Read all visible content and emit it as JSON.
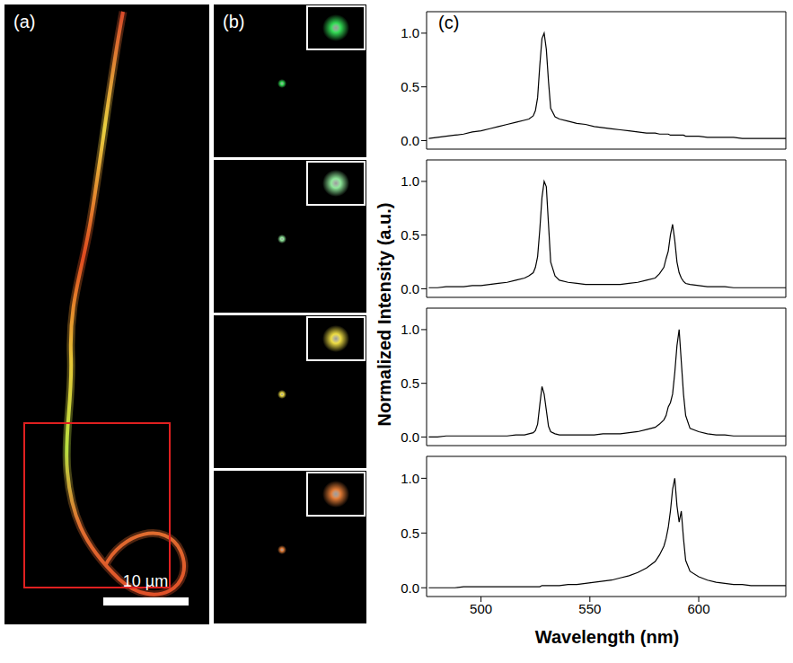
{
  "panel_a": {
    "label": "(a)",
    "scale_bar": "10 µm"
  },
  "panel_b": {
    "label": "(b)"
  },
  "panel_c": {
    "label": "(c)",
    "x_label": "Wavelength (nm)",
    "y_label": "Normalized Intensity (a.u.)"
  },
  "chart_data": [
    {
      "type": "line",
      "color": "#000000",
      "tick_labels": "y",
      "xlim": [
        475,
        640
      ],
      "xticks": [
        500,
        550,
        600
      ],
      "ylim": [
        -0.08,
        1.2
      ],
      "yticks": [
        {
          "value": 0,
          "label": "0.0"
        },
        {
          "value": 0.5,
          "label": "0.5"
        },
        {
          "value": 1,
          "label": "1.0"
        }
      ],
      "x": [
        476,
        480,
        484,
        488,
        492,
        496,
        500,
        504,
        508,
        512,
        516,
        520,
        522,
        524,
        525,
        526,
        527,
        528,
        529,
        530,
        531,
        532,
        534,
        536,
        540,
        544,
        548,
        552,
        556,
        560,
        564,
        568,
        572,
        576,
        580,
        582,
        584,
        585,
        586,
        587,
        588,
        589,
        590,
        591,
        592,
        593,
        594,
        596,
        600,
        604,
        608,
        612,
        616,
        620,
        624,
        628,
        632,
        636,
        640
      ],
      "values": [
        0.02,
        0.03,
        0.04,
        0.05,
        0.06,
        0.08,
        0.09,
        0.11,
        0.13,
        0.15,
        0.17,
        0.19,
        0.2,
        0.23,
        0.28,
        0.4,
        0.7,
        0.95,
        1.0,
        0.85,
        0.55,
        0.3,
        0.22,
        0.2,
        0.18,
        0.16,
        0.15,
        0.13,
        0.12,
        0.11,
        0.1,
        0.09,
        0.08,
        0.07,
        0.07,
        0.06,
        0.06,
        0.06,
        0.06,
        0.05,
        0.05,
        0.05,
        0.05,
        0.05,
        0.05,
        0.05,
        0.04,
        0.04,
        0.04,
        0.03,
        0.03,
        0.03,
        0.03,
        0.02,
        0.02,
        0.02,
        0.02,
        0.02,
        0.02
      ]
    },
    {
      "type": "line",
      "color": "#000000",
      "tick_labels": "y",
      "xlim": [
        475,
        640
      ],
      "xticks": [
        500,
        550,
        600
      ],
      "ylim": [
        -0.08,
        1.2
      ],
      "yticks": [
        {
          "value": 0,
          "label": "0.0"
        },
        {
          "value": 0.5,
          "label": "0.5"
        },
        {
          "value": 1,
          "label": "1.0"
        }
      ],
      "x": [
        476,
        480,
        484,
        488,
        492,
        496,
        500,
        504,
        508,
        512,
        516,
        520,
        522,
        524,
        525,
        526,
        527,
        528,
        529,
        530,
        531,
        532,
        534,
        536,
        540,
        544,
        548,
        552,
        556,
        560,
        564,
        568,
        572,
        576,
        580,
        582,
        584,
        585,
        586,
        587,
        588,
        589,
        590,
        591,
        592,
        593,
        594,
        596,
        600,
        604,
        608,
        612,
        616,
        620,
        624,
        628,
        632,
        636,
        640
      ],
      "values": [
        0.01,
        0.01,
        0.02,
        0.02,
        0.02,
        0.03,
        0.03,
        0.04,
        0.05,
        0.06,
        0.08,
        0.1,
        0.12,
        0.15,
        0.2,
        0.3,
        0.55,
        0.85,
        1.0,
        0.95,
        0.6,
        0.25,
        0.12,
        0.08,
        0.06,
        0.05,
        0.04,
        0.04,
        0.04,
        0.04,
        0.04,
        0.05,
        0.06,
        0.08,
        0.1,
        0.14,
        0.2,
        0.28,
        0.35,
        0.5,
        0.6,
        0.45,
        0.25,
        0.15,
        0.1,
        0.07,
        0.05,
        0.04,
        0.03,
        0.02,
        0.02,
        0.02,
        0.01,
        0.01,
        0.01,
        0.01,
        0.01,
        0.01,
        0.01
      ]
    },
    {
      "type": "line",
      "color": "#000000",
      "tick_labels": "y",
      "xlim": [
        475,
        640
      ],
      "xticks": [
        500,
        550,
        600
      ],
      "ylim": [
        -0.08,
        1.2
      ],
      "yticks": [
        {
          "value": 0,
          "label": "0.0"
        },
        {
          "value": 0.5,
          "label": "0.5"
        },
        {
          "value": 1,
          "label": "1.0"
        }
      ],
      "x": [
        476,
        480,
        484,
        488,
        492,
        496,
        500,
        504,
        508,
        512,
        516,
        520,
        522,
        524,
        525,
        526,
        527,
        528,
        529,
        530,
        531,
        532,
        534,
        536,
        540,
        544,
        548,
        552,
        556,
        560,
        564,
        568,
        572,
        576,
        580,
        582,
        584,
        585,
        586,
        587,
        588,
        589,
        590,
        591,
        592,
        593,
        594,
        596,
        600,
        604,
        608,
        612,
        616,
        620,
        624,
        628,
        632,
        636,
        640
      ],
      "values": [
        0.0,
        0.0,
        0.01,
        0.01,
        0.01,
        0.01,
        0.01,
        0.01,
        0.01,
        0.01,
        0.02,
        0.02,
        0.03,
        0.04,
        0.06,
        0.12,
        0.3,
        0.47,
        0.4,
        0.25,
        0.1,
        0.05,
        0.03,
        0.02,
        0.02,
        0.02,
        0.02,
        0.02,
        0.03,
        0.03,
        0.03,
        0.04,
        0.05,
        0.07,
        0.09,
        0.12,
        0.16,
        0.2,
        0.28,
        0.32,
        0.4,
        0.6,
        0.85,
        1.0,
        0.7,
        0.4,
        0.2,
        0.08,
        0.05,
        0.03,
        0.02,
        0.02,
        0.01,
        0.01,
        0.01,
        0.01,
        0.01,
        0.01,
        0.01
      ]
    },
    {
      "type": "line",
      "color": "#000000",
      "xlim": [
        475,
        640
      ],
      "xticks": [
        500,
        550,
        600
      ],
      "ylim": [
        -0.08,
        1.2
      ],
      "yticks": [
        {
          "value": 0,
          "label": "0.0"
        },
        {
          "value": 0.5,
          "label": "0.5"
        },
        {
          "value": 1,
          "label": "1.0"
        }
      ],
      "x": [
        476,
        480,
        484,
        488,
        492,
        496,
        500,
        504,
        508,
        512,
        516,
        520,
        522,
        524,
        525,
        526,
        527,
        528,
        529,
        530,
        531,
        532,
        534,
        536,
        540,
        544,
        548,
        552,
        556,
        560,
        564,
        568,
        572,
        576,
        580,
        582,
        584,
        585,
        586,
        587,
        588,
        589,
        590,
        591,
        592,
        593,
        594,
        596,
        600,
        604,
        608,
        612,
        616,
        620,
        624,
        628,
        632,
        636,
        640
      ],
      "values": [
        0.0,
        0.0,
        0.0,
        0.0,
        0.01,
        0.01,
        0.01,
        0.01,
        0.01,
        0.01,
        0.01,
        0.01,
        0.01,
        0.01,
        0.01,
        0.01,
        0.01,
        0.02,
        0.02,
        0.02,
        0.02,
        0.02,
        0.02,
        0.02,
        0.03,
        0.03,
        0.04,
        0.05,
        0.06,
        0.07,
        0.09,
        0.11,
        0.14,
        0.18,
        0.24,
        0.3,
        0.38,
        0.45,
        0.55,
        0.7,
        0.9,
        1.0,
        0.75,
        0.6,
        0.7,
        0.45,
        0.25,
        0.15,
        0.1,
        0.07,
        0.05,
        0.04,
        0.03,
        0.03,
        0.02,
        0.02,
        0.02,
        0.02,
        0.02
      ]
    }
  ]
}
